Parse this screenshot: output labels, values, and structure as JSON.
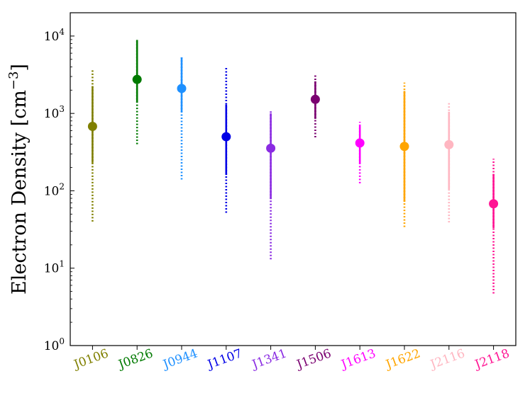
{
  "chart_data": {
    "type": "scatter",
    "subtype": "errorbar-log",
    "ylabel": "Electron Density [cm",
    "ylabel_exponent": "−3",
    "ylabel_close": "]",
    "yscale": "log",
    "ylim": [
      1,
      20000
    ],
    "yticks": [
      {
        "value": 1,
        "base": "10",
        "exp": "0"
      },
      {
        "value": 10,
        "base": "10",
        "exp": "1"
      },
      {
        "value": 100,
        "base": "10",
        "exp": "2"
      },
      {
        "value": 1000,
        "base": "10",
        "exp": "3"
      },
      {
        "value": 10000,
        "base": "10",
        "exp": "4"
      }
    ],
    "categories": [
      "J0106",
      "J0826",
      "J0944",
      "J1107",
      "J1341",
      "J1506",
      "J1613",
      "J1622",
      "J2116",
      "J2118"
    ],
    "points": [
      {
        "name": "J0106",
        "value": 680,
        "solid": [
          230,
          2250
        ],
        "dotted": [
          40,
          3800
        ],
        "color": "#808000"
      },
      {
        "name": "J0826",
        "value": 2750,
        "solid": [
          1380,
          8900
        ],
        "dotted": [
          400,
          8900
        ],
        "color": "#007a00"
      },
      {
        "name": "J0944",
        "value": 2100,
        "solid": [
          1050,
          5300
        ],
        "dotted": [
          140,
          5300
        ],
        "color": "#1e90ff"
      },
      {
        "name": "J1107",
        "value": 500,
        "solid": [
          160,
          1300
        ],
        "dotted": [
          52,
          4000
        ],
        "color": "#0000e6"
      },
      {
        "name": "J1341",
        "value": 355,
        "solid": [
          78,
          1000
        ],
        "dotted": [
          13,
          1100
        ],
        "color": "#8a2be2"
      },
      {
        "name": "J1506",
        "value": 1520,
        "solid": [
          850,
          2600
        ],
        "dotted": [
          490,
          3100
        ],
        "color": "#7a0070"
      },
      {
        "name": "J1613",
        "value": 415,
        "solid": [
          225,
          690
        ],
        "dotted": [
          125,
          780
        ],
        "color": "#ff00ff"
      },
      {
        "name": "J1622",
        "value": 375,
        "solid": [
          72,
          1950
        ],
        "dotted": [
          34,
          2500
        ],
        "color": "#ffa500"
      },
      {
        "name": "J2116",
        "value": 395,
        "solid": [
          105,
          1050
        ],
        "dotted": [
          39,
          1400
        ],
        "color": "#ffb6c1"
      },
      {
        "name": "J2118",
        "value": 68,
        "solid": [
          33,
          165
        ],
        "dotted": [
          4.7,
          260
        ],
        "color": "#ff1493"
      }
    ]
  }
}
